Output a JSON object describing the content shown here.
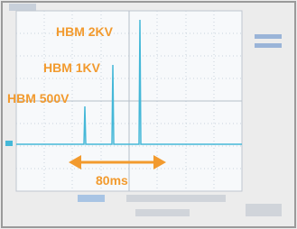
{
  "annotations": [
    "HBM 2KV",
    "HBM 1KV",
    "HBM 500V"
  ],
  "arrow_label": "80ms"
}
